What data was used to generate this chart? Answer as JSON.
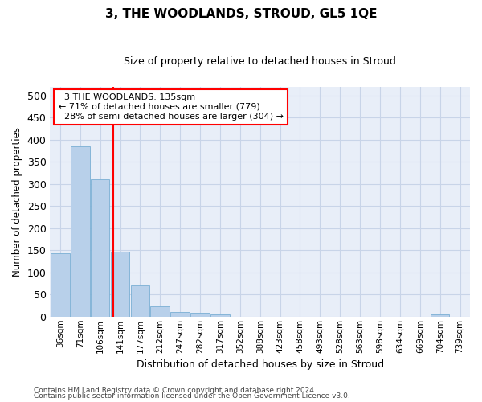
{
  "title": "3, THE WOODLANDS, STROUD, GL5 1QE",
  "subtitle": "Size of property relative to detached houses in Stroud",
  "xlabel": "Distribution of detached houses by size in Stroud",
  "ylabel": "Number of detached properties",
  "bar_color": "#b8d0ea",
  "bar_edge_color": "#7aafd4",
  "grid_color": "#c8d4e8",
  "background_color": "#e8eef8",
  "categories": [
    "36sqm",
    "71sqm",
    "106sqm",
    "141sqm",
    "177sqm",
    "212sqm",
    "247sqm",
    "282sqm",
    "317sqm",
    "352sqm",
    "388sqm",
    "423sqm",
    "458sqm",
    "493sqm",
    "528sqm",
    "563sqm",
    "598sqm",
    "634sqm",
    "669sqm",
    "704sqm",
    "739sqm"
  ],
  "values": [
    143,
    385,
    310,
    147,
    70,
    23,
    10,
    9,
    5,
    0,
    0,
    0,
    0,
    0,
    0,
    0,
    0,
    0,
    0,
    5,
    0
  ],
  "ylim": [
    0,
    520
  ],
  "yticks": [
    0,
    50,
    100,
    150,
    200,
    250,
    300,
    350,
    400,
    450,
    500
  ],
  "property_label": "3 THE WOODLANDS: 135sqm",
  "pct_smaller": 71,
  "n_smaller": 779,
  "pct_larger": 28,
  "n_larger": 304,
  "vline_x": 2.65,
  "footer_line1": "Contains HM Land Registry data © Crown copyright and database right 2024.",
  "footer_line2": "Contains public sector information licensed under the Open Government Licence v3.0."
}
